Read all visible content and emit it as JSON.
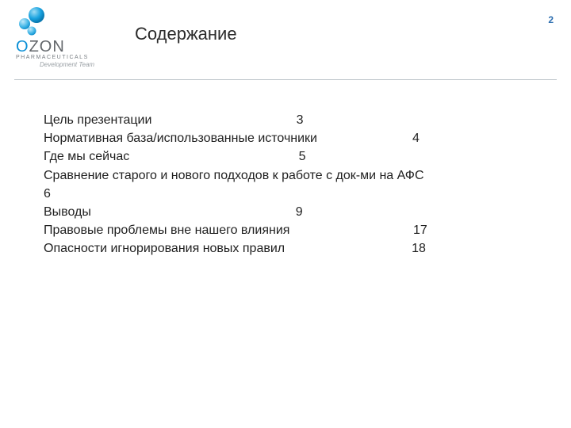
{
  "logo": {
    "main_text": "OZON",
    "sub1": "PHARMACEUTICALS",
    "sub2": "Development Team",
    "bubble_color": "#0a8fd6",
    "bubble_accent": "#6fc7ec",
    "text_color": "#63676b"
  },
  "title": "Содержание",
  "page_number": "2",
  "rule_color": "#bfc7cc",
  "accent_color": "#2e6fb0",
  "text_color": "#1f1f1f",
  "background_color": "#ffffff",
  "font_family": "Arial, Helvetica, sans-serif",
  "title_fontsize": 22,
  "body_fontsize": 16,
  "tab_stops": [
    320,
    465
  ],
  "toc": [
    {
      "label": "Цель презентации",
      "page": "3",
      "tab": 0
    },
    {
      "label": "Нормативная база/использованные источники",
      "page": "4",
      "tab": 1
    },
    {
      "label": "Где мы сейчас",
      "page": "5",
      "tab": 0
    },
    {
      "label": "Сравнение старого и нового подходов к работе с док-ми на АФС",
      "page": "6",
      "tab": null
    },
    {
      "label": "Выводы",
      "page": "9",
      "tab": 0
    },
    {
      "label": "Правовые проблемы вне нашего влияния",
      "page": "17",
      "tab": 1
    },
    {
      "label": "Опасности игнорирования новых правил",
      "page": "18",
      "tab": 1
    }
  ]
}
